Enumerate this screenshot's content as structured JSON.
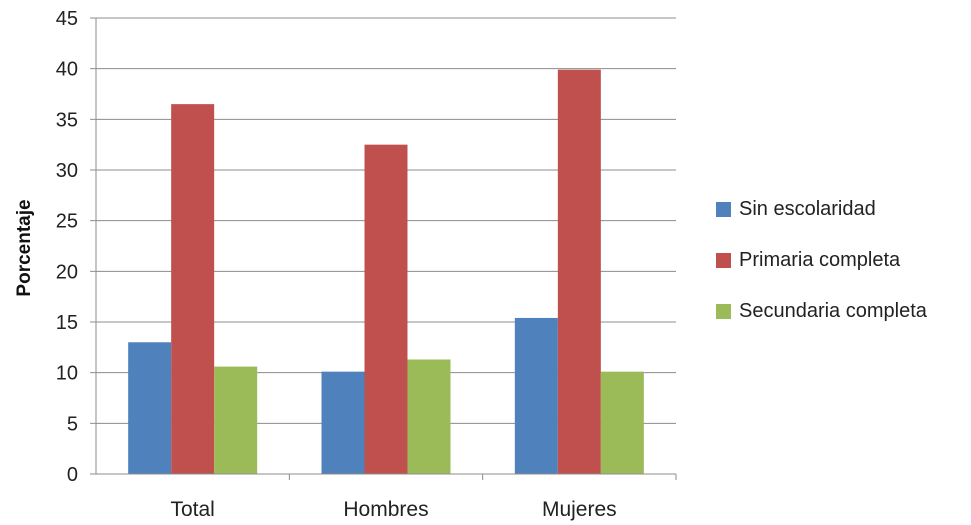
{
  "chart_data": {
    "type": "bar",
    "categories": [
      "Total",
      "Hombres",
      "Mujeres"
    ],
    "series": [
      {
        "name": "Sin escolaridad",
        "values": [
          13.0,
          10.1,
          15.4
        ],
        "color": "#4f81bd"
      },
      {
        "name": "Primaria completa",
        "values": [
          36.5,
          32.5,
          39.9
        ],
        "color": "#c0504d"
      },
      {
        "name": "Secundaria completa",
        "values": [
          10.6,
          11.3,
          10.1
        ],
        "color": "#9bbb59"
      }
    ],
    "title": "",
    "xlabel": "",
    "ylabel": "Porcentaje",
    "ylim": [
      0,
      45
    ],
    "yticks": [
      0,
      5,
      10,
      15,
      20,
      25,
      30,
      35,
      40,
      45
    ],
    "grid": true,
    "legend_position": "right"
  }
}
